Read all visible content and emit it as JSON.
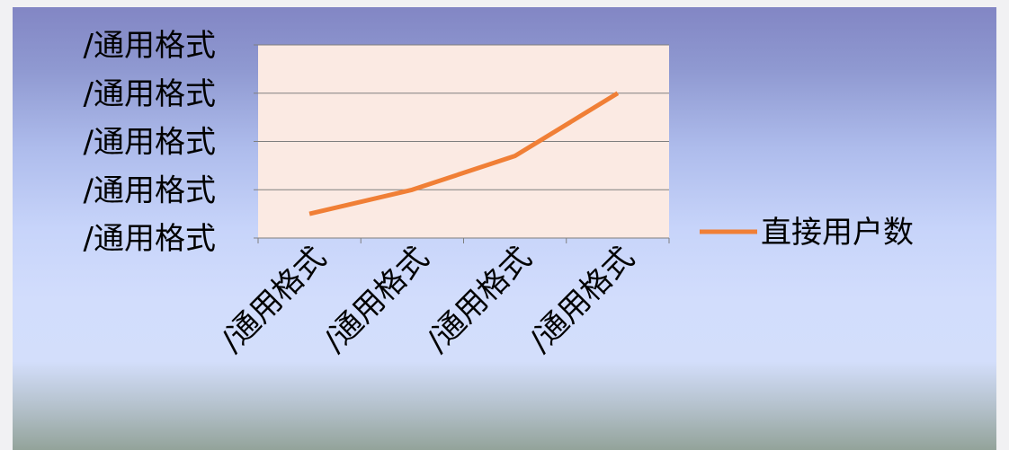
{
  "chart_data": {
    "type": "line",
    "categories": [
      "/通用格式",
      "/通用格式",
      "/通用格式",
      "/通用格式"
    ],
    "series": [
      {
        "name": "直接用户数",
        "values": [
          0.5,
          1.0,
          1.7,
          3.0
        ],
        "color": "#f07f36"
      }
    ],
    "y_tick_labels": [
      "/通用格式",
      "/通用格式",
      "/通用格式",
      "/通用格式",
      "/通用格式"
    ],
    "ylim": [
      0,
      4
    ],
    "grid": true,
    "legend_position": "right",
    "plot_background": "#fbeae3"
  }
}
